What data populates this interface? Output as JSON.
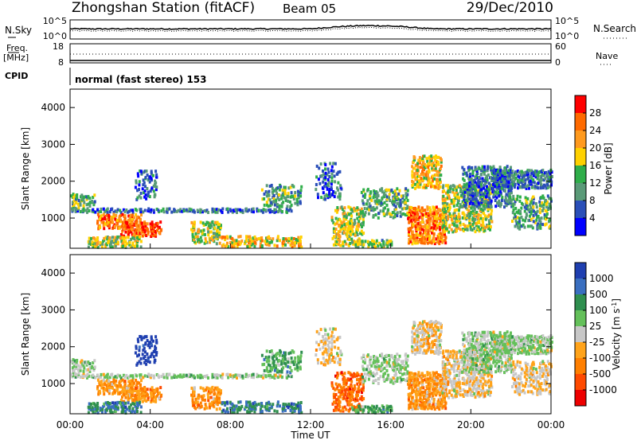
{
  "header": {
    "title": "Zhongshan Station (fitACF)",
    "beam": "Beam 05",
    "date": "29/Dec/2010"
  },
  "noise_panel": {
    "left_label": "N.Sky",
    "right_label": "N.Search",
    "ticks_left": [
      "10^5",
      "10^0"
    ],
    "ticks_right": [
      "10^5",
      "10^0"
    ]
  },
  "freq_panel": {
    "left_label_top": "Freq.",
    "left_label_bottom": "[MHz]",
    "right_label": "Nave",
    "ticks_left": [
      "18",
      "8"
    ],
    "ticks_right": [
      "60",
      "0"
    ]
  },
  "cpid": {
    "label": "CPID",
    "text": "normal (fast stereo) 153"
  },
  "x_axis": {
    "label": "Time UT",
    "ticks": [
      "00:00",
      "04:00",
      "08:00",
      "12:00",
      "16:00",
      "20:00",
      "00:00"
    ]
  },
  "chart_data": [
    {
      "type": "heatmap",
      "panel": "power",
      "xlabel": "Time UT",
      "ylabel": "Slant Range [km]",
      "y_ticks": [
        "1000",
        "2000",
        "3000",
        "4000"
      ],
      "colorbar_label": "Power [dB]",
      "colorbar_ticks": [
        "28",
        "24",
        "20",
        "16",
        "12",
        "8",
        "4"
      ],
      "colorbar_colors": [
        "#ff0000",
        "#ff6a00",
        "#ff9a1e",
        "#ffd100",
        "#2fae4a",
        "#5a9a78",
        "#2a4fb8",
        "#0000ff"
      ],
      "ylim": [
        180,
        4500
      ],
      "xlim_hours": [
        0,
        24
      ]
    },
    {
      "type": "heatmap",
      "panel": "velocity",
      "xlabel": "Time UT",
      "ylabel": "Slant Range [km]",
      "y_ticks": [
        "1000",
        "2000",
        "3000",
        "4000"
      ],
      "colorbar_label": "Velocity [m s^-1]",
      "colorbar_ticks": [
        "1000",
        "500",
        "100",
        "25",
        "-25",
        "-100",
        "-500",
        "-1000"
      ],
      "colorbar_colors": [
        "#1f3fb0",
        "#3a6fc0",
        "#2f8f4f",
        "#64c05a",
        "#c7c7c7",
        "#ffa31a",
        "#ff7f00",
        "#ff4a00",
        "#ee0000"
      ],
      "ylim": [
        180,
        4500
      ],
      "xlim_hours": [
        0,
        24
      ]
    }
  ]
}
